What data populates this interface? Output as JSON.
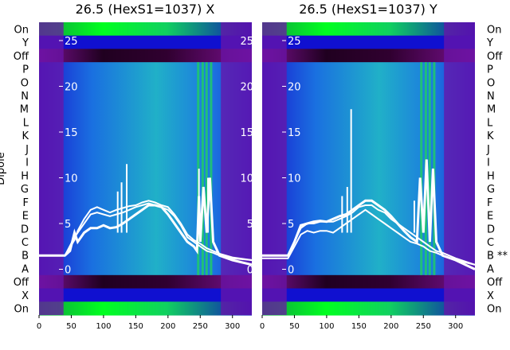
{
  "chart_data": [
    {
      "type": "heatmap",
      "title": "26.5 (HexS1=1037) X",
      "ylabel": "Dipole",
      "xlim": [
        0,
        330
      ],
      "x_ticks": [
        0,
        50,
        100,
        150,
        200,
        250,
        300
      ],
      "overlay_ylim": [
        -5,
        27
      ],
      "overlay_ticks": [
        0,
        5,
        10,
        15,
        20,
        25
      ],
      "row_labels": [
        "On",
        "Y",
        "Off",
        "P",
        "O",
        "N",
        "M",
        "L",
        "K",
        "J",
        "I",
        "H",
        "G",
        "F",
        "E",
        "D",
        "C",
        "B",
        "A",
        "Off",
        "X",
        "On"
      ],
      "series": [
        {
          "name": "",
          "x": [
            0,
            40,
            48,
            55,
            60,
            70,
            80,
            90,
            100,
            110,
            120,
            130,
            140,
            150,
            160,
            170,
            180,
            190,
            200,
            210,
            220,
            230,
            240,
            245,
            248,
            250,
            255,
            260,
            265,
            270,
            280,
            300,
            330
          ],
          "y": [
            1.5,
            1.5,
            2.0,
            4.0,
            3.0,
            4.0,
            4.5,
            4.5,
            4.8,
            4.5,
            4.6,
            5.0,
            5.5,
            6.0,
            6.5,
            7.0,
            7.0,
            6.8,
            6.0,
            5.0,
            4.0,
            3.0,
            2.5,
            2.0,
            8.0,
            3.0,
            9.0,
            4.0,
            10.0,
            3.0,
            1.5,
            1.0,
            0.5
          ]
        },
        {
          "name": "",
          "x": [
            0,
            40,
            55,
            60,
            70,
            80,
            90,
            100,
            110,
            120,
            130,
            140,
            150,
            160,
            170,
            180,
            190,
            200,
            210,
            220,
            230,
            240,
            250,
            260,
            270,
            280,
            300,
            330
          ],
          "y": [
            1.5,
            1.5,
            3.5,
            4.0,
            5.0,
            6.0,
            6.2,
            6.0,
            5.8,
            6.0,
            6.2,
            6.5,
            6.8,
            7.0,
            7.2,
            7.0,
            6.8,
            6.5,
            5.8,
            4.8,
            3.5,
            3.0,
            2.5,
            2.0,
            1.8,
            1.5,
            1.2,
            1.0
          ]
        },
        {
          "name": "",
          "x": [
            0,
            40,
            55,
            60,
            70,
            80,
            90,
            100,
            110,
            120,
            130,
            140,
            150,
            160,
            170,
            180,
            190,
            200,
            210,
            220,
            230,
            240,
            250,
            260,
            270,
            280,
            300,
            330
          ],
          "y": [
            1.5,
            1.5,
            3.2,
            4.2,
            5.5,
            6.5,
            6.8,
            6.5,
            6.2,
            6.5,
            6.7,
            6.9,
            7.0,
            7.3,
            7.5,
            7.3,
            7.0,
            6.8,
            6.0,
            5.0,
            3.8,
            3.2,
            2.8,
            2.3,
            2.0,
            1.7,
            1.3,
            1.0
          ]
        }
      ],
      "spikes": [
        {
          "x": 122,
          "y": 8.5
        },
        {
          "x": 128,
          "y": 9.5
        },
        {
          "x": 136,
          "y": 11.5
        },
        {
          "x": 248,
          "y": 11.0
        },
        {
          "x": 262,
          "y": 10.0
        }
      ]
    },
    {
      "type": "heatmap",
      "title": "26.5 (HexS1=1037) Y",
      "xlim": [
        0,
        330
      ],
      "x_ticks": [
        0,
        50,
        100,
        150,
        200,
        250,
        300
      ],
      "overlay_ylim": [
        -5,
        27
      ],
      "overlay_ticks": [
        0,
        5,
        10,
        15,
        20,
        25
      ],
      "row_labels": [
        "On",
        "Y",
        "Off",
        "P",
        "O",
        "N",
        "M",
        "L",
        "K",
        "J",
        "I",
        "H",
        "G",
        "F",
        "E",
        "D",
        "C",
        "B **",
        "A",
        "Off",
        "X",
        "On"
      ],
      "series": [
        {
          "name": "",
          "x": [
            0,
            40,
            50,
            60,
            70,
            80,
            90,
            100,
            110,
            120,
            130,
            140,
            150,
            160,
            170,
            180,
            190,
            200,
            210,
            220,
            230,
            240,
            245,
            250,
            255,
            260,
            265,
            270,
            280,
            300,
            330
          ],
          "y": [
            1.5,
            1.5,
            3.0,
            4.8,
            5.0,
            5.2,
            5.3,
            5.2,
            5.5,
            5.8,
            6.0,
            6.5,
            7.0,
            7.5,
            7.5,
            7.0,
            6.5,
            5.8,
            5.0,
            4.2,
            3.5,
            3.0,
            10.0,
            4.0,
            12.0,
            3.0,
            11.0,
            3.0,
            1.5,
            1.0,
            0.0
          ]
        },
        {
          "name": "",
          "x": [
            0,
            40,
            50,
            60,
            70,
            80,
            90,
            100,
            110,
            120,
            130,
            140,
            150,
            160,
            170,
            180,
            190,
            200,
            210,
            220,
            230,
            240,
            250,
            260,
            270,
            280,
            300,
            330
          ],
          "y": [
            1.5,
            1.5,
            3.0,
            4.5,
            5.0,
            5.0,
            5.2,
            5.2,
            5.2,
            5.5,
            5.8,
            6.2,
            6.8,
            7.0,
            7.0,
            6.5,
            6.2,
            5.5,
            5.0,
            4.5,
            4.0,
            3.5,
            3.0,
            2.5,
            2.0,
            1.8,
            1.2,
            0.5
          ]
        },
        {
          "name": "",
          "x": [
            0,
            40,
            50,
            60,
            70,
            80,
            90,
            100,
            110,
            120,
            130,
            140,
            150,
            160,
            170,
            180,
            190,
            200,
            210,
            220,
            230,
            240,
            250,
            260,
            270,
            280,
            300,
            330
          ],
          "y": [
            1.2,
            1.2,
            2.5,
            3.8,
            4.2,
            4.0,
            4.2,
            4.2,
            4.0,
            4.5,
            5.0,
            5.5,
            6.0,
            6.5,
            6.0,
            5.5,
            5.0,
            4.5,
            4.0,
            3.5,
            3.0,
            2.8,
            2.5,
            2.0,
            1.8,
            1.5,
            1.0,
            0.5
          ]
        }
      ],
      "spikes": [
        {
          "x": 124,
          "y": 8.0
        },
        {
          "x": 132,
          "y": 9.0
        },
        {
          "x": 138,
          "y": 17.5
        },
        {
          "x": 236,
          "y": 7.5
        }
      ]
    }
  ]
}
